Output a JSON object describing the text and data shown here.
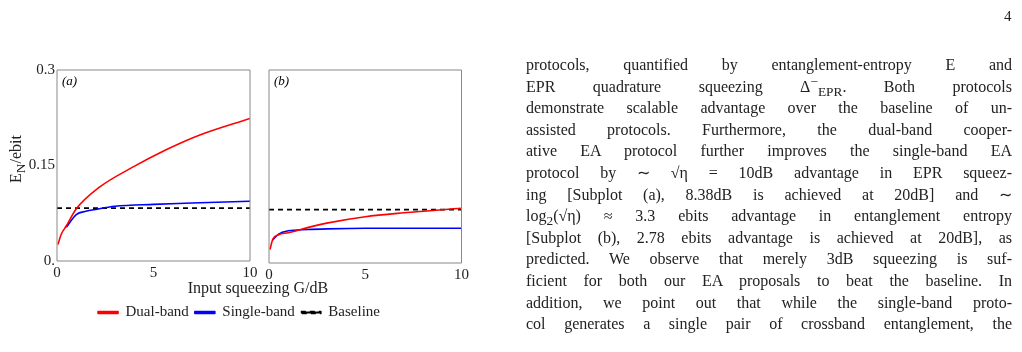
{
  "chart_data": [
    {
      "type": "line",
      "ylabel": "E$_{N}$/ebit",
      "xlabel": "Input squeezing G/dB",
      "xlim": [
        0,
        10
      ],
      "xticks": [
        0,
        5,
        10
      ],
      "ylim": [
        0,
        0.3
      ],
      "yticks": [
        {
          "value": 0,
          "label": "0."
        },
        0.15,
        0.3
      ],
      "legend": "bottom",
      "marker": "none",
      "annotations": [
        "(a)",
        "4",
        "protocols, quantified by entanglement-entropy E and",
        "EPR quadrature squeezing Δ$^{−}$$_{EPR}$.   Both protocols",
        "demonstrate scalable advantage over the baseline of un-",
        "assisted protocols. Furthermore, the dual-band cooper-",
        "ative EA protocol further improves the single-band EA",
        "protocol by ∼ √η = 10dB advantage in EPR squeez-",
        "ing [Subplot (a), 8.38dB is achieved at 20dB] and ∼",
        "log$_{2}$(√η) ≈ 3.3 ebits advantage in entanglement entropy",
        "[Subplot (b), 2.78 ebits advantage is achieved at 20dB], as",
        "predicted. We observe that merely 3dB squeezing is suf-",
        "ficient for both our EA proposals to beat the baseline. In",
        "addition, we point out that while the single-band proto-",
        "col generates a single pair of crossband entanglement, the"
      ],
      "series": [
        {
          "name": "Dual-band",
          "color": "#ff0000",
          "line_style": "solid",
          "x": [
            0.05,
            0.22,
            0.48,
            1,
            2.2,
            3.9,
            5.6,
            7.4,
            10
          ],
          "values": [
            0.026,
            0.042,
            0.055,
            0.082,
            0.116,
            0.147,
            0.174,
            0.198,
            0.224
          ]
        },
        {
          "name": "Single-band",
          "color": "#0000ff",
          "line_style": "solid",
          "x": [
            0.48,
            1,
            1.5,
            2,
            3,
            5,
            7,
            10
          ],
          "values": [
            0.053,
            0.073,
            0.078,
            0.081,
            0.086,
            0.089,
            0.091,
            0.094
          ]
        },
        {
          "name": "Baseline",
          "color": "#000000",
          "line_style": "dashed",
          "x": [
            0,
            10
          ],
          "values": [
            0.083,
            0.083
          ]
        }
      ]
    },
    {
      "type": "line",
      "xlim": [
        0,
        10
      ],
      "xticks": [
        0,
        5,
        10
      ],
      "ylim": [
        0,
        0.3
      ],
      "yticks": [
        0,
        0.15,
        0.3
      ],
      "tick_labels": "x",
      "marker": "none",
      "annotations": [
        "(b)"
      ],
      "series": [
        {
          "color": "#ff0000",
          "line_style": "solid",
          "x": [
            0.05,
            0.2,
            0.5,
            1,
            2,
            3,
            5,
            7,
            10
          ],
          "values": [
            0.021,
            0.037,
            0.044,
            0.047,
            0.055,
            0.062,
            0.072,
            0.078,
            0.085
          ]
        },
        {
          "color": "#0000ff",
          "line_style": "solid",
          "x": [
            0.2,
            0.5,
            1,
            2,
            3,
            5,
            7,
            10
          ],
          "values": [
            0.036,
            0.045,
            0.05,
            0.052,
            0.053,
            0.054,
            0.054,
            0.054
          ]
        },
        {
          "color": "#000000",
          "line_style": "dashed",
          "x": [
            0,
            10
          ],
          "values": [
            0.083,
            0.083
          ]
        }
      ]
    }
  ]
}
